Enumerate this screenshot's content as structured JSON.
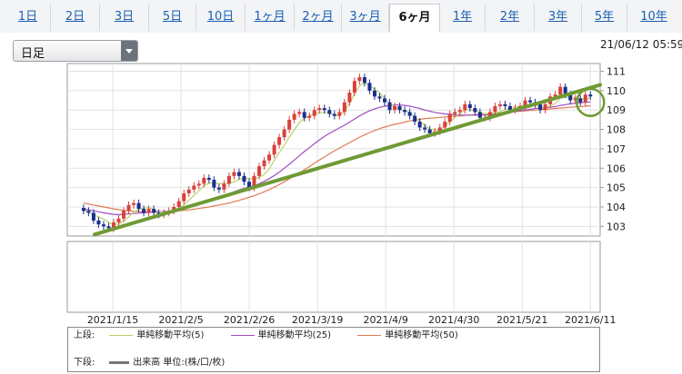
{
  "tabs": [
    {
      "label": "1日",
      "active": false
    },
    {
      "label": "2日",
      "active": false
    },
    {
      "label": "3日",
      "active": false
    },
    {
      "label": "5日",
      "active": false
    },
    {
      "label": "10日",
      "active": false
    },
    {
      "label": "1ヶ月",
      "active": false
    },
    {
      "label": "2ヶ月",
      "active": false
    },
    {
      "label": "3ヶ月",
      "active": false
    },
    {
      "label": "6ヶ月",
      "active": true
    },
    {
      "label": "1年",
      "active": false
    },
    {
      "label": "2年",
      "active": false
    },
    {
      "label": "3年",
      "active": false
    },
    {
      "label": "5年",
      "active": false
    },
    {
      "label": "10年",
      "active": false
    }
  ],
  "period_select": {
    "value": "日足"
  },
  "timestamp": "21/06/12 05:59",
  "colors": {
    "up": "#d9413c",
    "down": "#1b2f8f",
    "ma5": "#b9d36a",
    "ma25": "#a04cc4",
    "ma50": "#e07a52",
    "trendline": "#6f9a34",
    "circle": "#6f9a34",
    "volume": "#777777"
  },
  "legend": {
    "upper_label": "上段:",
    "lower_label": "下段:",
    "ma5_label": "単純移動平均(5)",
    "ma25_label": "単純移動平均(25)",
    "ma50_label": "単純移動平均(50)",
    "volume_label": "出来高 単位:(株/口/枚)"
  },
  "chart_data": {
    "type": "candlestick",
    "x_labels": [
      "2021/1/15",
      "2021/2/5",
      "2021/2/26",
      "2021/3/19",
      "2021/4/9",
      "2021/4/30",
      "2021/5/21",
      "2021/6/11"
    ],
    "ylim": [
      102.5,
      111.4
    ],
    "yticks": [
      103,
      104,
      105,
      106,
      107,
      108,
      109,
      110,
      111
    ],
    "x_range": [
      "2021/1/1",
      "2021/6/14"
    ],
    "grid": true,
    "close": [
      103.8,
      103.7,
      103.3,
      103.1,
      103.0,
      102.9,
      103.2,
      103.4,
      103.8,
      104.1,
      104.2,
      103.9,
      103.7,
      103.9,
      103.7,
      103.6,
      103.7,
      103.8,
      104.0,
      104.3,
      104.7,
      104.9,
      105.1,
      105.2,
      105.5,
      105.4,
      105.0,
      104.9,
      105.2,
      105.6,
      105.8,
      105.6,
      105.3,
      105.0,
      105.6,
      106.1,
      106.4,
      106.7,
      107.2,
      107.6,
      108.0,
      108.5,
      108.8,
      108.9,
      108.6,
      108.7,
      109.0,
      109.1,
      109.0,
      108.8,
      108.7,
      108.9,
      109.4,
      109.9,
      110.5,
      110.7,
      110.4,
      110.0,
      109.7,
      109.6,
      109.4,
      109.0,
      109.2,
      109.0,
      108.9,
      108.7,
      108.4,
      108.1,
      108.0,
      107.8,
      107.9,
      108.1,
      108.4,
      108.8,
      108.9,
      109.0,
      109.3,
      109.1,
      108.9,
      108.6,
      108.6,
      108.9,
      109.2,
      109.3,
      109.2,
      109.0,
      109.1,
      109.2,
      109.5,
      109.4,
      109.3,
      109.0,
      109.3,
      109.7,
      109.8,
      110.2,
      109.8,
      109.5,
      109.6,
      109.4,
      109.8,
      109.7
    ],
    "ma5": [
      103.8,
      103.75,
      103.6,
      103.48,
      103.38,
      103.2,
      103.1,
      103.12,
      103.26,
      103.48,
      103.74,
      103.88,
      103.94,
      103.96,
      103.88,
      103.76,
      103.72,
      103.74,
      103.76,
      103.88,
      104.1,
      104.34,
      104.6,
      104.84,
      105.08,
      105.22,
      105.24,
      105.2,
      105.2,
      105.22,
      105.3,
      105.42,
      105.5,
      105.46,
      105.46,
      105.52,
      105.68,
      105.96,
      106.4,
      106.8,
      107.18,
      107.6,
      107.98,
      108.36,
      108.56,
      108.7,
      108.8,
      108.86,
      108.88,
      108.84,
      108.72,
      108.7,
      108.96,
      109.34,
      109.84,
      110.26,
      110.4,
      110.28,
      110.06,
      109.88,
      109.62,
      109.34,
      109.18,
      109.04,
      108.98,
      108.88,
      108.64,
      108.42,
      108.22,
      108.0,
      107.98,
      108.0,
      108.16,
      108.4,
      108.62,
      108.84,
      109.0,
      109.02,
      108.98,
      108.86,
      108.8,
      108.82,
      108.84,
      108.92,
      109.04,
      109.12,
      109.16,
      109.2,
      109.26,
      109.24,
      109.24,
      109.16,
      109.12,
      109.2,
      109.34,
      109.6,
      109.66,
      109.66,
      109.62,
      109.58,
      109.58,
      109.6
    ],
    "ma25": [
      103.9,
      103.85,
      103.8,
      103.75,
      103.7,
      103.65,
      103.62,
      103.6,
      103.62,
      103.64,
      103.66,
      103.68,
      103.7,
      103.72,
      103.74,
      103.76,
      103.76,
      103.78,
      103.8,
      103.85,
      103.9,
      103.98,
      104.06,
      104.16,
      104.26,
      104.36,
      104.42,
      104.5,
      104.58,
      104.68,
      104.78,
      104.88,
      104.96,
      105.02,
      105.1,
      105.2,
      105.32,
      105.46,
      105.62,
      105.8,
      106.0,
      106.2,
      106.42,
      106.64,
      106.86,
      107.06,
      107.26,
      107.46,
      107.64,
      107.8,
      107.94,
      108.08,
      108.22,
      108.38,
      108.54,
      108.7,
      108.84,
      108.96,
      109.06,
      109.14,
      109.2,
      109.24,
      109.26,
      109.26,
      109.24,
      109.2,
      109.14,
      109.08,
      109.0,
      108.94,
      108.88,
      108.84,
      108.8,
      108.78,
      108.76,
      108.74,
      108.74,
      108.74,
      108.74,
      108.74,
      108.74,
      108.76,
      108.78,
      108.8,
      108.84,
      108.88,
      108.92,
      108.96,
      109.0,
      109.04,
      109.08,
      109.1,
      109.12,
      109.14,
      109.18,
      109.24,
      109.28,
      109.32,
      109.36,
      109.38,
      109.4,
      109.42
    ],
    "ma50": [
      104.2,
      104.15,
      104.1,
      104.05,
      104.0,
      103.95,
      103.9,
      103.86,
      103.82,
      103.8,
      103.78,
      103.76,
      103.75,
      103.74,
      103.74,
      103.74,
      103.75,
      103.76,
      103.78,
      103.8,
      103.82,
      103.85,
      103.88,
      103.92,
      103.96,
      104.0,
      104.05,
      104.1,
      104.15,
      104.2,
      104.27,
      104.34,
      104.42,
      104.5,
      104.58,
      104.68,
      104.78,
      104.9,
      105.02,
      105.15,
      105.3,
      105.45,
      105.6,
      105.76,
      105.92,
      106.08,
      106.25,
      106.42,
      106.58,
      106.74,
      106.9,
      107.04,
      107.18,
      107.32,
      107.46,
      107.6,
      107.72,
      107.84,
      107.94,
      108.04,
      108.12,
      108.2,
      108.26,
      108.32,
      108.38,
      108.44,
      108.48,
      108.52,
      108.56,
      108.58,
      108.6,
      108.62,
      108.64,
      108.66,
      108.68,
      108.7,
      108.72,
      108.74,
      108.76,
      108.78,
      108.8,
      108.82,
      108.84,
      108.86,
      108.88,
      108.9,
      108.92,
      108.94,
      108.96,
      108.98,
      109.0,
      109.02,
      109.04,
      109.06,
      109.08,
      109.1,
      109.12,
      109.14,
      109.16,
      109.18,
      109.2,
      109.22
    ],
    "trendline": [
      {
        "x": "2021/1/1",
        "y": 102.3
      },
      {
        "x": "2021/6/14",
        "y": 110.3
      }
    ],
    "highlight_circle": {
      "x": "2021/6/11",
      "y": 109.4
    },
    "volume": "none"
  }
}
